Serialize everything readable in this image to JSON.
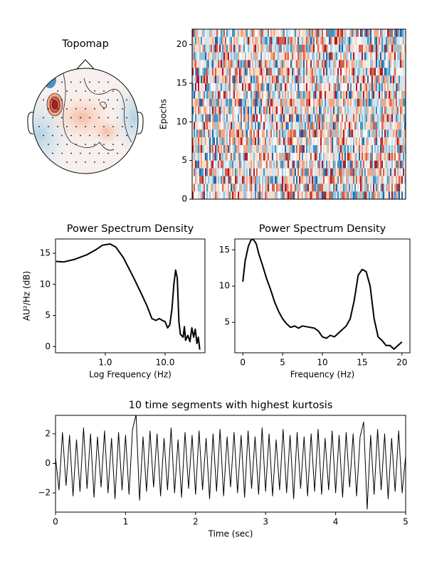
{
  "chart_data": [
    {
      "type": "topomap",
      "title": "Topomap"
    },
    {
      "type": "image",
      "ylabel": "Epochs",
      "ylim": [
        0,
        22
      ],
      "yticks": [
        0,
        5,
        10,
        15,
        20
      ]
    },
    {
      "type": "line",
      "title": "Power Spectrum Density",
      "xlabel": "Log Frequency (Hz)",
      "ylabel": "AU²/Hz (dB)",
      "xscale": "log",
      "color": "#000000",
      "xlim": [
        0.147,
        46.4
      ],
      "xticks": [
        {
          "value": 1,
          "label": "1.0"
        },
        {
          "value": 10,
          "label": "10.0"
        }
      ],
      "ylim": [
        -1,
        17.3
      ],
      "yticks": [
        0,
        5,
        10,
        15
      ],
      "x": [
        0.15,
        0.2,
        0.3,
        0.5,
        0.7,
        0.9,
        1.2,
        1.5,
        2,
        2.5,
        3,
        4,
        5,
        6,
        7,
        8,
        9,
        10,
        11,
        12,
        13,
        14,
        15,
        16,
        17,
        18,
        20,
        21,
        22,
        24,
        26,
        28,
        30,
        32,
        34,
        36,
        38
      ],
      "values": [
        13.7,
        13.6,
        14,
        14.8,
        15.6,
        16.3,
        16.5,
        16,
        14.3,
        12.5,
        11,
        8.5,
        6.5,
        4.5,
        4.2,
        4.5,
        4.2,
        4.0,
        3.0,
        3.5,
        6,
        10,
        12.3,
        11,
        4,
        2,
        1.5,
        3.2,
        1,
        1.8,
        0.8,
        3,
        1.5,
        2.8,
        0.5,
        1.5,
        -0.5
      ]
    },
    {
      "type": "line",
      "title": "Power Spectrum Density",
      "xlabel": "Frequency (Hz)",
      "color": "#000000",
      "xlim": [
        -1,
        21
      ],
      "xticks": [
        0,
        5,
        10,
        15,
        20
      ],
      "ylim": [
        0.8,
        16.5
      ],
      "yticks": [
        5,
        10,
        15
      ],
      "x": [
        0,
        0.3,
        0.7,
        1,
        1.3,
        1.7,
        2,
        2.5,
        3,
        3.5,
        4,
        4.5,
        5,
        5.5,
        6,
        6.5,
        7,
        7.5,
        8,
        8.5,
        9,
        9.5,
        10,
        10.5,
        11,
        11.5,
        12,
        12.5,
        13,
        13.5,
        14,
        14.5,
        15,
        15.5,
        16,
        16.5,
        17,
        17.5,
        18,
        18.5,
        19,
        19.5,
        20
      ],
      "values": [
        10.6,
        13.5,
        15.5,
        16.3,
        16.5,
        15.8,
        14.5,
        12.8,
        11,
        9.5,
        7.8,
        6.5,
        5.5,
        4.8,
        4.3,
        4.5,
        4.2,
        4.5,
        4.4,
        4.3,
        4.2,
        3.8,
        3.0,
        2.8,
        3.2,
        3.0,
        3.5,
        4.0,
        4.5,
        5.5,
        8,
        11.5,
        12.3,
        12,
        10,
        5.5,
        3,
        2.5,
        1.8,
        1.8,
        1.3,
        1.8,
        2.3
      ]
    },
    {
      "type": "line",
      "title": "10 time segments with highest kurtosis",
      "xlabel": "Time (sec)",
      "color": "#000000",
      "thin": true,
      "xlim": [
        0,
        5
      ],
      "xticks": [
        0,
        1,
        2,
        3,
        4,
        5
      ],
      "ylim": [
        -3.3,
        3.25
      ],
      "yticks": [
        {
          "value": -2,
          "label": "−2"
        },
        0,
        2
      ],
      "x": [
        0,
        0.05,
        0.1,
        0.15,
        0.2,
        0.25,
        0.3,
        0.35,
        0.4,
        0.45,
        0.5,
        0.55,
        0.6,
        0.65,
        0.7,
        0.75,
        0.8,
        0.85,
        0.9,
        0.95,
        1,
        1.05,
        1.1,
        1.15,
        1.2,
        1.25,
        1.3,
        1.35,
        1.4,
        1.45,
        1.5,
        1.55,
        1.6,
        1.65,
        1.7,
        1.75,
        1.8,
        1.85,
        1.9,
        1.95,
        2,
        2.05,
        2.1,
        2.15,
        2.2,
        2.25,
        2.3,
        2.35,
        2.4,
        2.45,
        2.5,
        2.55,
        2.6,
        2.65,
        2.7,
        2.75,
        2.8,
        2.85,
        2.9,
        2.95,
        3,
        3.05,
        3.1,
        3.15,
        3.2,
        3.25,
        3.3,
        3.35,
        3.4,
        3.45,
        3.5,
        3.55,
        3.6,
        3.65,
        3.7,
        3.75,
        3.8,
        3.85,
        3.9,
        3.95,
        4,
        4.05,
        4.1,
        4.15,
        4.2,
        4.25,
        4.3,
        4.35,
        4.4,
        4.45,
        4.5,
        4.55,
        4.6,
        4.65,
        4.7,
        4.75,
        4.8,
        4.85,
        4.9,
        4.95,
        5
      ],
      "values": [
        0.4,
        -1.8,
        2.1,
        -1.5,
        1.9,
        -2.2,
        1.6,
        -1.9,
        2.4,
        -1.7,
        2.0,
        -2.3,
        1.8,
        -1.6,
        2.2,
        -2.0,
        1.7,
        -2.4,
        2.1,
        -1.8,
        1.9,
        -2.1,
        2.3,
        3.3,
        -2.5,
        1.8,
        -1.9,
        2.2,
        -1.6,
        2.0,
        -2.2,
        1.7,
        -1.8,
        2.4,
        -2.0,
        1.6,
        -2.3,
        2.1,
        -1.7,
        1.9,
        -2.1,
        2.2,
        -1.8,
        1.7,
        -2.4,
        2.0,
        -1.9,
        2.3,
        -2.2,
        1.8,
        -1.6,
        2.1,
        -2.0,
        1.9,
        -2.3,
        2.2,
        -1.7,
        1.8,
        -2.1,
        2.4,
        -1.9,
        2.0,
        -2.2,
        1.6,
        -1.8,
        2.3,
        -2.0,
        1.9,
        -2.4,
        2.1,
        -1.7,
        1.8,
        -2.2,
        2.0,
        -1.9,
        2.3,
        -2.1,
        1.7,
        -1.8,
        2.2,
        -2.0,
        1.9,
        -2.3,
        2.1,
        -1.6,
        2.0,
        -2.2,
        1.8,
        2.8,
        -3.1,
        1.9,
        -2.1,
        2.3,
        -1.8,
        2.0,
        -2.4,
        1.7,
        -1.9,
        2.2,
        -2.0,
        0.5
      ]
    }
  ]
}
